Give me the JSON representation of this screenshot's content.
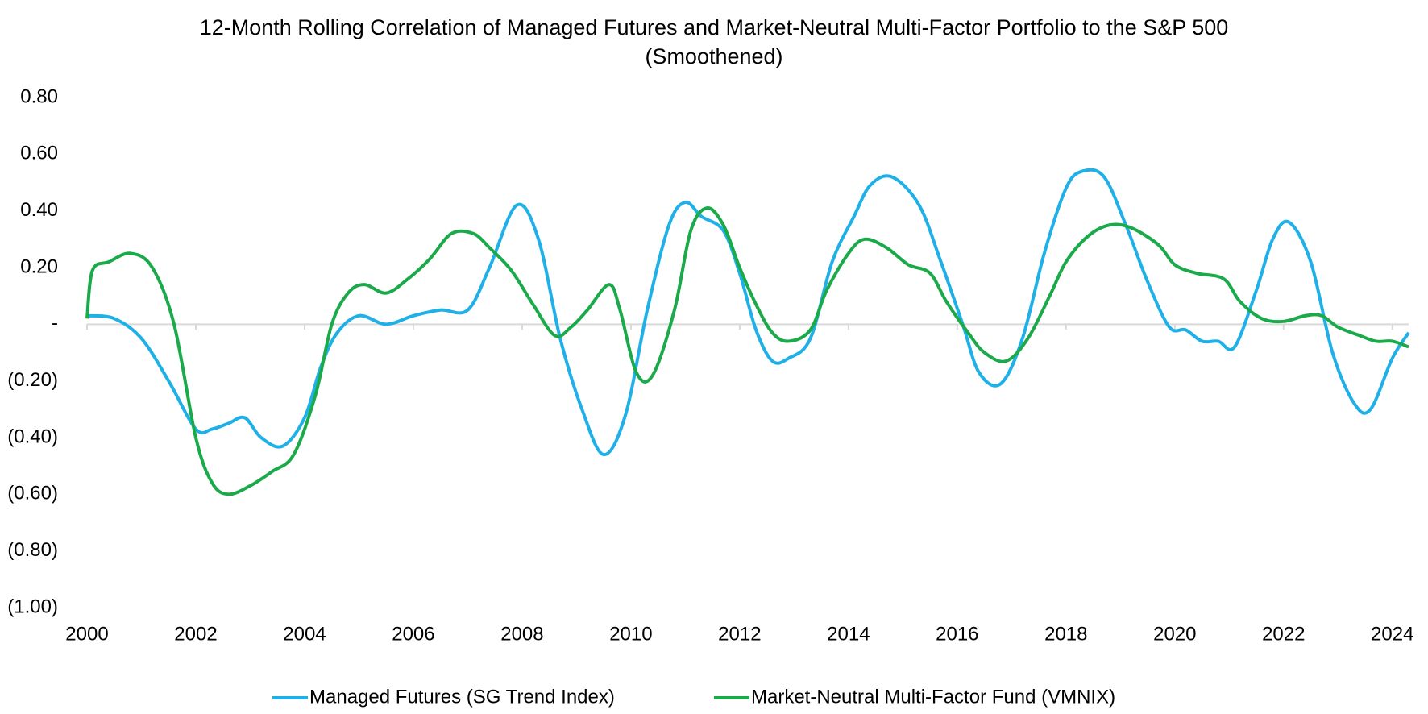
{
  "chart_data": {
    "type": "line",
    "title": "12-Month Rolling Correlation of Managed Futures and Market-Neutral Multi-Factor Portfolio to the S&P 500 (Smoothened)",
    "xlim": [
      2000,
      2024.3
    ],
    "xticks": [
      2000,
      2002,
      2004,
      2006,
      2008,
      2010,
      2012,
      2014,
      2016,
      2018,
      2020,
      2022,
      2024
    ],
    "ylim": [
      -1.0,
      0.8
    ],
    "yticks": [
      {
        "value": -1.0,
        "label": "(1.00)"
      },
      {
        "value": -0.8,
        "label": "(0.80)"
      },
      {
        "value": -0.6,
        "label": "(0.60)"
      },
      {
        "value": -0.4,
        "label": "(0.40)"
      },
      {
        "value": -0.2,
        "label": "(0.20)"
      },
      {
        "value": 0,
        "label": "-"
      },
      {
        "value": 0.2,
        "label": "0.20"
      },
      {
        "value": 0.4,
        "label": "0.40"
      },
      {
        "value": 0.6,
        "label": "0.60"
      },
      {
        "value": 0.8,
        "label": "0.80"
      }
    ],
    "grid": false,
    "legend": "bottom",
    "series": [
      {
        "name": "Managed Futures (SG Trend Index)",
        "color": "#1fb0e8",
        "x": [
          2000,
          2000.5,
          2001,
          2001.5,
          2002,
          2002.3,
          2002.6,
          2002.9,
          2003.2,
          2003.6,
          2004,
          2004.3,
          2004.6,
          2005,
          2005.5,
          2006,
          2006.5,
          2007,
          2007.4,
          2007.9,
          2008.3,
          2008.7,
          2009.1,
          2009.5,
          2009.9,
          2010.3,
          2010.7,
          2011,
          2011.3,
          2011.7,
          2012,
          2012.3,
          2012.6,
          2012.9,
          2013.3,
          2013.7,
          2014.1,
          2014.4,
          2014.8,
          2015.3,
          2015.7,
          2016.1,
          2016.4,
          2016.8,
          2017.2,
          2017.6,
          2018,
          2018.3,
          2018.7,
          2019.1,
          2019.5,
          2019.9,
          2020.2,
          2020.5,
          2020.8,
          2021.1,
          2021.5,
          2021.8,
          2022.1,
          2022.5,
          2022.9,
          2023.3,
          2023.6,
          2024,
          2024.3
        ],
        "values": [
          0.03,
          0.02,
          -0.05,
          -0.2,
          -0.37,
          -0.37,
          -0.35,
          -0.33,
          -0.4,
          -0.43,
          -0.33,
          -0.15,
          -0.03,
          0.03,
          0.0,
          0.03,
          0.05,
          0.05,
          0.2,
          0.42,
          0.3,
          -0.05,
          -0.3,
          -0.46,
          -0.32,
          0.05,
          0.35,
          0.43,
          0.38,
          0.33,
          0.18,
          -0.02,
          -0.13,
          -0.12,
          -0.05,
          0.22,
          0.38,
          0.49,
          0.52,
          0.42,
          0.22,
          0.0,
          -0.17,
          -0.21,
          -0.05,
          0.25,
          0.48,
          0.54,
          0.52,
          0.35,
          0.15,
          -0.01,
          -0.02,
          -0.06,
          -0.06,
          -0.08,
          0.12,
          0.3,
          0.36,
          0.22,
          -0.1,
          -0.28,
          -0.3,
          -0.12,
          -0.03
        ]
      },
      {
        "name": "Market-Neutral Multi-Factor Fund (VMNIX)",
        "color": "#1aaa4a",
        "x": [
          2000,
          2000.1,
          2000.4,
          2000.8,
          2001.2,
          2001.6,
          2002,
          2002.3,
          2002.6,
          2003,
          2003.4,
          2003.8,
          2004.2,
          2004.5,
          2004.8,
          2005.1,
          2005.5,
          2005.9,
          2006.3,
          2006.7,
          2007.1,
          2007.4,
          2007.8,
          2008.2,
          2008.6,
          2008.9,
          2009.2,
          2009.6,
          2009.8,
          2010.1,
          2010.4,
          2010.8,
          2011.1,
          2011.4,
          2011.7,
          2012,
          2012.3,
          2012.6,
          2012.9,
          2013.3,
          2013.6,
          2014,
          2014.3,
          2014.7,
          2015.1,
          2015.5,
          2015.8,
          2016.2,
          2016.5,
          2016.9,
          2017.3,
          2017.7,
          2018,
          2018.4,
          2018.8,
          2019.2,
          2019.7,
          2020,
          2020.4,
          2020.9,
          2021.2,
          2021.6,
          2022,
          2022.4,
          2022.7,
          2023,
          2023.4,
          2023.7,
          2024,
          2024.3
        ],
        "values": [
          0.02,
          0.19,
          0.22,
          0.25,
          0.2,
          0.0,
          -0.4,
          -0.56,
          -0.6,
          -0.57,
          -0.52,
          -0.46,
          -0.25,
          0.0,
          0.11,
          0.14,
          0.11,
          0.16,
          0.23,
          0.32,
          0.32,
          0.27,
          0.19,
          0.07,
          -0.04,
          -0.01,
          0.05,
          0.14,
          0.05,
          -0.17,
          -0.18,
          0.05,
          0.33,
          0.41,
          0.35,
          0.2,
          0.07,
          -0.03,
          -0.06,
          -0.02,
          0.12,
          0.25,
          0.3,
          0.27,
          0.21,
          0.18,
          0.08,
          -0.03,
          -0.1,
          -0.13,
          -0.05,
          0.1,
          0.22,
          0.31,
          0.35,
          0.34,
          0.28,
          0.21,
          0.18,
          0.16,
          0.08,
          0.02,
          0.01,
          0.03,
          0.03,
          -0.01,
          -0.04,
          -0.06,
          -0.06,
          -0.08
        ]
      }
    ]
  }
}
